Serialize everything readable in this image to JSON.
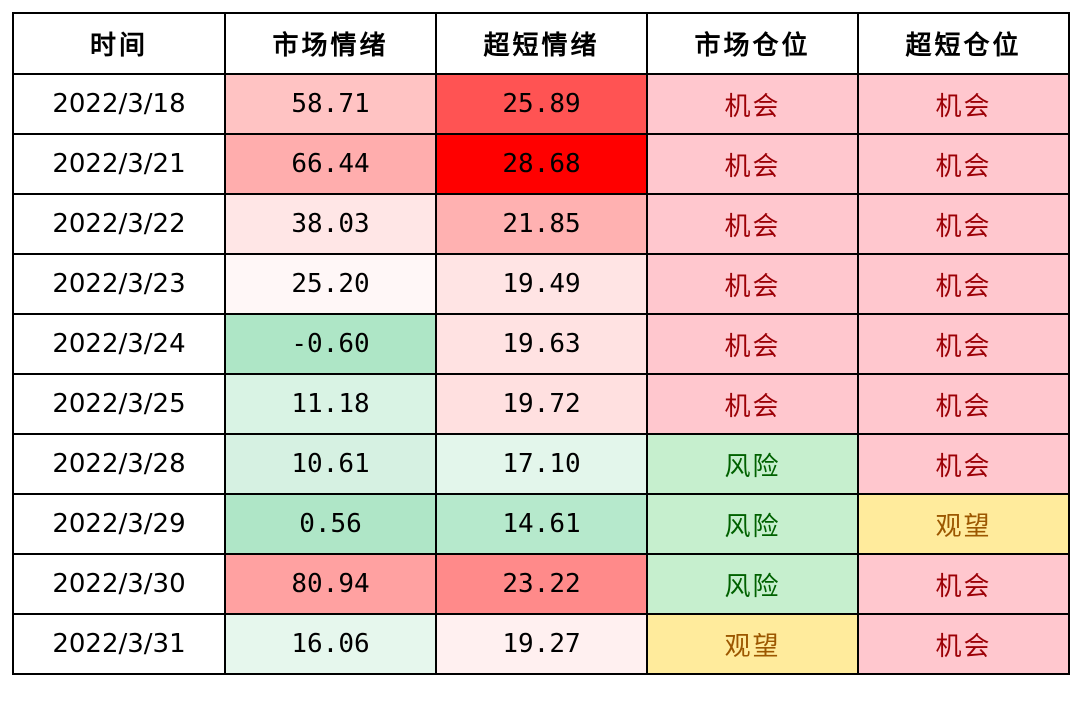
{
  "colors": {
    "opportunity_fill": "#ffc7ce",
    "opportunity_text": "#9c0006",
    "risk_fill": "#c6efce",
    "risk_text": "#006100",
    "watch_fill": "#ffeb9c",
    "watch_text": "#9c5700"
  },
  "table": {
    "headers": [
      "时间",
      "市场情绪",
      "超短情绪",
      "市场仓位",
      "超短仓位"
    ],
    "rows": [
      {
        "date": "2022/3/18",
        "market_sentiment": "58.71",
        "market_bg": "#ffc3c3",
        "ultra_sentiment": "25.89",
        "ultra_bg": "#ff5353",
        "market_position": "机会",
        "ultra_position": "机会"
      },
      {
        "date": "2022/3/21",
        "market_sentiment": "66.44",
        "market_bg": "#ffadad",
        "ultra_sentiment": "28.68",
        "ultra_bg": "#ff0000",
        "market_position": "机会",
        "ultra_position": "机会"
      },
      {
        "date": "2022/3/22",
        "market_sentiment": "38.03",
        "market_bg": "#ffe6e6",
        "ultra_sentiment": "21.85",
        "ultra_bg": "#ffb1b1",
        "market_position": "机会",
        "ultra_position": "机会"
      },
      {
        "date": "2022/3/23",
        "market_sentiment": "25.20",
        "market_bg": "#fff7f7",
        "ultra_sentiment": "19.49",
        "ultra_bg": "#ffe4e4",
        "market_position": "机会",
        "ultra_position": "机会"
      },
      {
        "date": "2022/3/24",
        "market_sentiment": "-0.60",
        "market_bg": "#aee6c6",
        "ultra_sentiment": "19.63",
        "ultra_bg": "#ffe2e2",
        "market_position": "机会",
        "ultra_position": "机会"
      },
      {
        "date": "2022/3/25",
        "market_sentiment": "11.18",
        "market_bg": "#d9f3e4",
        "ultra_sentiment": "19.72",
        "ultra_bg": "#ffe0e0",
        "market_position": "机会",
        "ultra_position": "机会"
      },
      {
        "date": "2022/3/28",
        "market_sentiment": "10.61",
        "market_bg": "#d6f1e2",
        "ultra_sentiment": "17.10",
        "ultra_bg": "#e3f6eb",
        "market_position": "风险",
        "ultra_position": "机会"
      },
      {
        "date": "2022/3/29",
        "market_sentiment": "0.56",
        "market_bg": "#afe6c7",
        "ultra_sentiment": "14.61",
        "ultra_bg": "#b6e9cc",
        "market_position": "风险",
        "ultra_position": "观望"
      },
      {
        "date": "2022/3/30",
        "market_sentiment": "80.94",
        "market_bg": "#ffa1a1",
        "ultra_sentiment": "23.22",
        "ultra_bg": "#ff8a8a",
        "market_position": "风险",
        "ultra_position": "机会"
      },
      {
        "date": "2022/3/31",
        "market_sentiment": "16.06",
        "market_bg": "#e6f7ed",
        "ultra_sentiment": "19.27",
        "ultra_bg": "#fff0f0",
        "market_position": "观望",
        "ultra_position": "机会"
      }
    ]
  }
}
